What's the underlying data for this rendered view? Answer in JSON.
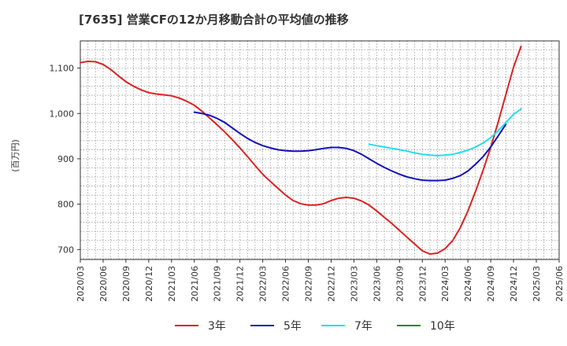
{
  "chart_data": {
    "type": "line",
    "title": "[7635]  営業CFの12か月移動合計の平均値の推移",
    "ylabel": "(百万円)",
    "xlabel": "",
    "x_ticks": [
      "2020/03",
      "2020/06",
      "2020/09",
      "2020/12",
      "2021/03",
      "2021/06",
      "2021/09",
      "2021/12",
      "2022/03",
      "2022/06",
      "2022/09",
      "2022/12",
      "2023/03",
      "2023/06",
      "2023/09",
      "2023/12",
      "2024/03",
      "2024/06",
      "2024/09",
      "2024/12",
      "2025/03",
      "2025/06"
    ],
    "y_ticks": [
      700,
      800,
      900,
      1000,
      1100
    ],
    "y_tick_labels": [
      "700",
      "800",
      "900",
      "1,000",
      "1,100"
    ],
    "ylim": [
      678,
      1160
    ],
    "grid": true,
    "legend_position": "bottom",
    "series": [
      {
        "name": "3年",
        "color": "#dd2222",
        "points": [
          [
            "2020/03",
            1112
          ],
          [
            "2020/04",
            1115
          ],
          [
            "2020/05",
            1114
          ],
          [
            "2020/06",
            1108
          ],
          [
            "2020/07",
            1097
          ],
          [
            "2020/08",
            1083
          ],
          [
            "2020/09",
            1070
          ],
          [
            "2020/10",
            1060
          ],
          [
            "2020/11",
            1052
          ],
          [
            "2020/12",
            1046
          ],
          [
            "2021/01",
            1043
          ],
          [
            "2021/02",
            1041
          ],
          [
            "2021/03",
            1039
          ],
          [
            "2021/04",
            1034
          ],
          [
            "2021/05",
            1027
          ],
          [
            "2021/06",
            1018
          ],
          [
            "2021/07",
            1005
          ],
          [
            "2021/08",
            990
          ],
          [
            "2021/09",
            975
          ],
          [
            "2021/10",
            959
          ],
          [
            "2021/11",
            942
          ],
          [
            "2021/12",
            924
          ],
          [
            "2022/01",
            905
          ],
          [
            "2022/02",
            885
          ],
          [
            "2022/03",
            866
          ],
          [
            "2022/04",
            850
          ],
          [
            "2022/05",
            835
          ],
          [
            "2022/06",
            820
          ],
          [
            "2022/07",
            808
          ],
          [
            "2022/08",
            801
          ],
          [
            "2022/09",
            798
          ],
          [
            "2022/10",
            798
          ],
          [
            "2022/11",
            801
          ],
          [
            "2022/12",
            808
          ],
          [
            "2023/01",
            813
          ],
          [
            "2023/02",
            815
          ],
          [
            "2023/03",
            813
          ],
          [
            "2023/04",
            807
          ],
          [
            "2023/05",
            798
          ],
          [
            "2023/06",
            785
          ],
          [
            "2023/07",
            771
          ],
          [
            "2023/08",
            757
          ],
          [
            "2023/09",
            742
          ],
          [
            "2023/10",
            727
          ],
          [
            "2023/11",
            712
          ],
          [
            "2023/12",
            697
          ],
          [
            "2024/01",
            690
          ],
          [
            "2024/02",
            692
          ],
          [
            "2024/03",
            702
          ],
          [
            "2024/04",
            720
          ],
          [
            "2024/05",
            748
          ],
          [
            "2024/06",
            785
          ],
          [
            "2024/07",
            828
          ],
          [
            "2024/08",
            875
          ],
          [
            "2024/09",
            925
          ],
          [
            "2024/10",
            982
          ],
          [
            "2024/11",
            1042
          ],
          [
            "2024/12",
            1102
          ],
          [
            "2025/01",
            1148
          ]
        ]
      },
      {
        "name": "5年",
        "color": "#1111bb",
        "points": [
          [
            "2021/06",
            1003
          ],
          [
            "2021/07",
            1000
          ],
          [
            "2021/08",
            996
          ],
          [
            "2021/09",
            989
          ],
          [
            "2021/10",
            980
          ],
          [
            "2021/11",
            968
          ],
          [
            "2021/12",
            956
          ],
          [
            "2022/01",
            945
          ],
          [
            "2022/02",
            936
          ],
          [
            "2022/03",
            929
          ],
          [
            "2022/04",
            924
          ],
          [
            "2022/05",
            920
          ],
          [
            "2022/06",
            918
          ],
          [
            "2022/07",
            917
          ],
          [
            "2022/08",
            917
          ],
          [
            "2022/09",
            918
          ],
          [
            "2022/10",
            920
          ],
          [
            "2022/11",
            923
          ],
          [
            "2022/12",
            925
          ],
          [
            "2023/01",
            925
          ],
          [
            "2023/02",
            923
          ],
          [
            "2023/03",
            918
          ],
          [
            "2023/04",
            910
          ],
          [
            "2023/05",
            900
          ],
          [
            "2023/06",
            890
          ],
          [
            "2023/07",
            881
          ],
          [
            "2023/08",
            873
          ],
          [
            "2023/09",
            866
          ],
          [
            "2023/10",
            860
          ],
          [
            "2023/11",
            856
          ],
          [
            "2023/12",
            853
          ],
          [
            "2024/01",
            852
          ],
          [
            "2024/02",
            852
          ],
          [
            "2024/03",
            853
          ],
          [
            "2024/04",
            857
          ],
          [
            "2024/05",
            863
          ],
          [
            "2024/06",
            873
          ],
          [
            "2024/07",
            888
          ],
          [
            "2024/08",
            905
          ],
          [
            "2024/09",
            926
          ],
          [
            "2024/10",
            951
          ],
          [
            "2024/11",
            976
          ]
        ]
      },
      {
        "name": "7年",
        "color": "#22ddee",
        "points": [
          [
            "2023/05",
            932
          ],
          [
            "2023/06",
            929
          ],
          [
            "2023/07",
            926
          ],
          [
            "2023/08",
            923
          ],
          [
            "2023/09",
            920
          ],
          [
            "2023/10",
            917
          ],
          [
            "2023/11",
            913
          ],
          [
            "2023/12",
            910
          ],
          [
            "2024/01",
            908
          ],
          [
            "2024/02",
            907
          ],
          [
            "2024/03",
            908
          ],
          [
            "2024/04",
            910
          ],
          [
            "2024/05",
            914
          ],
          [
            "2024/06",
            919
          ],
          [
            "2024/07",
            926
          ],
          [
            "2024/08",
            935
          ],
          [
            "2024/09",
            947
          ],
          [
            "2024/10",
            962
          ],
          [
            "2024/11",
            980
          ],
          [
            "2024/12",
            998
          ],
          [
            "2025/01",
            1010
          ]
        ]
      },
      {
        "name": "10年",
        "color": "#228822",
        "points": []
      }
    ]
  }
}
